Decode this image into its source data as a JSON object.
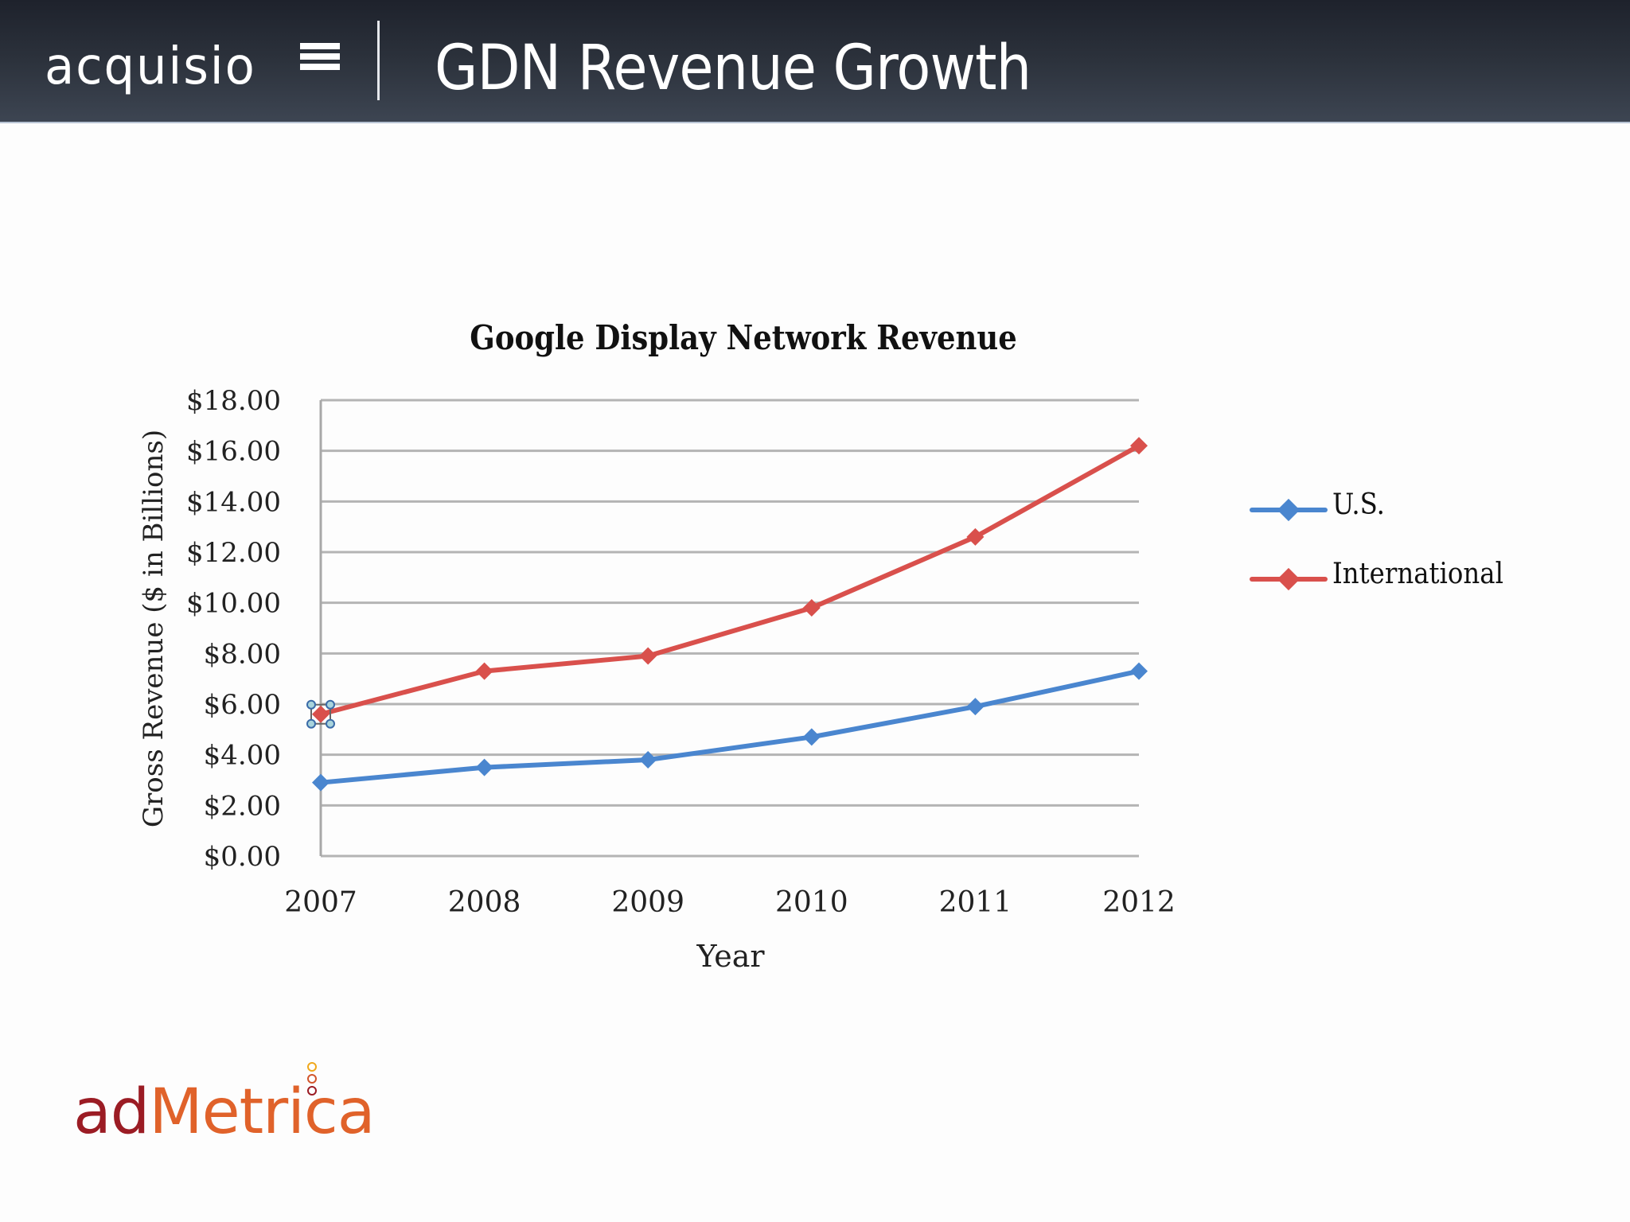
{
  "header": {
    "brand": "acquisio",
    "title": "GDN Revenue Growth"
  },
  "footer": {
    "logo_part1": "ad",
    "logo_part2": "Metrica"
  },
  "colors": {
    "us": "#4a86cf",
    "international": "#d9504c",
    "grid": "#b4b4b4",
    "logo_dark_red": "#9b1c24",
    "logo_orange": "#e0622a",
    "logo_yellow": "#f0a81c"
  },
  "chart_data": {
    "type": "line",
    "title": "Google Display Network Revenue",
    "xlabel": "Year",
    "ylabel": "Gross Revenue ($ in Billions)",
    "categories": [
      "2007",
      "2008",
      "2009",
      "2010",
      "2011",
      "2012"
    ],
    "series": [
      {
        "name": "U.S.",
        "values": [
          2.9,
          3.5,
          3.8,
          4.7,
          5.9,
          7.3
        ]
      },
      {
        "name": "International",
        "values": [
          5.6,
          7.3,
          7.9,
          9.8,
          12.6,
          16.2
        ]
      }
    ],
    "yticks": [
      "$0.00",
      "$2.00",
      "$4.00",
      "$6.00",
      "$8.00",
      "$10.00",
      "$12.00",
      "$14.00",
      "$16.00",
      "$18.00"
    ],
    "ylim": [
      0,
      18
    ],
    "grid": true,
    "legend_position": "right",
    "markers": "diamond",
    "annotations": "2007 International point shown selected (handles)"
  }
}
